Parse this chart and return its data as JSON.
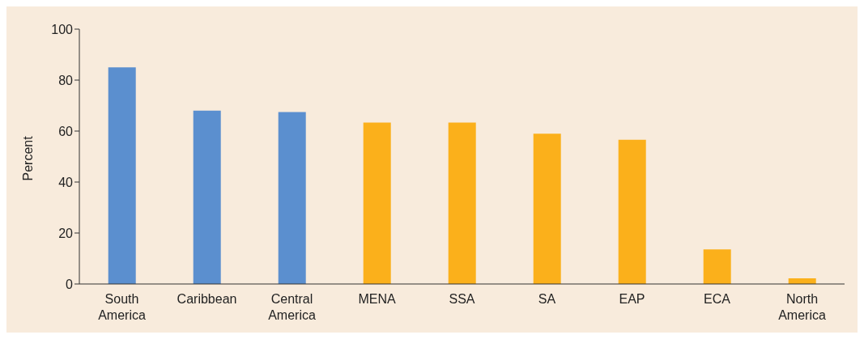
{
  "chart_data": {
    "type": "bar",
    "ylabel": "Percent",
    "categories": [
      "South America",
      "Caribbean",
      "Central America",
      "MENA",
      "SSA",
      "SA",
      "EAP",
      "ECA",
      "North America"
    ],
    "values": [
      85,
      68,
      67.5,
      63.3,
      63.3,
      59,
      56.6,
      13.6,
      2.2
    ],
    "colors": [
      "#5b8fcf",
      "#5b8fcf",
      "#5b8fcf",
      "#fbb01b",
      "#fbb01b",
      "#fbb01b",
      "#fbb01b",
      "#fbb01b",
      "#fbb01b"
    ],
    "ylim": [
      0,
      100
    ],
    "yticks": [
      0,
      20,
      40,
      60,
      80,
      100
    ],
    "grid": false,
    "legend": false
  }
}
